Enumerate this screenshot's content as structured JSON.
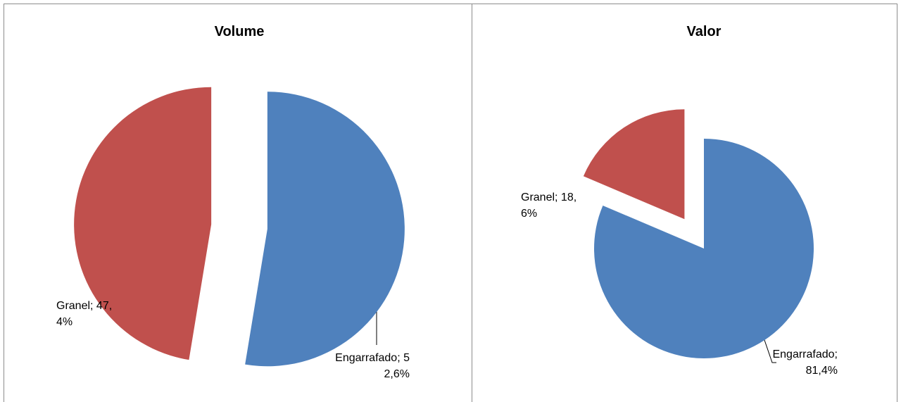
{
  "chart_data": [
    {
      "type": "pie",
      "title": "Volume",
      "categories": [
        "Engarrafado",
        "Granel"
      ],
      "values": [
        52.6,
        47.4
      ],
      "value_labels": [
        "Engarrafado; 52,6%",
        "Granel; 47,4%"
      ],
      "colors": [
        "#4f81bd",
        "#c0504d"
      ]
    },
    {
      "type": "pie",
      "title": "Valor",
      "categories": [
        "Engarrafado",
        "Granel"
      ],
      "values": [
        81.4,
        18.6
      ],
      "value_labels": [
        "Engarrafado; 81,4%",
        "Granel; 18,6%"
      ],
      "colors": [
        "#4f81bd",
        "#c0504d"
      ]
    }
  ]
}
